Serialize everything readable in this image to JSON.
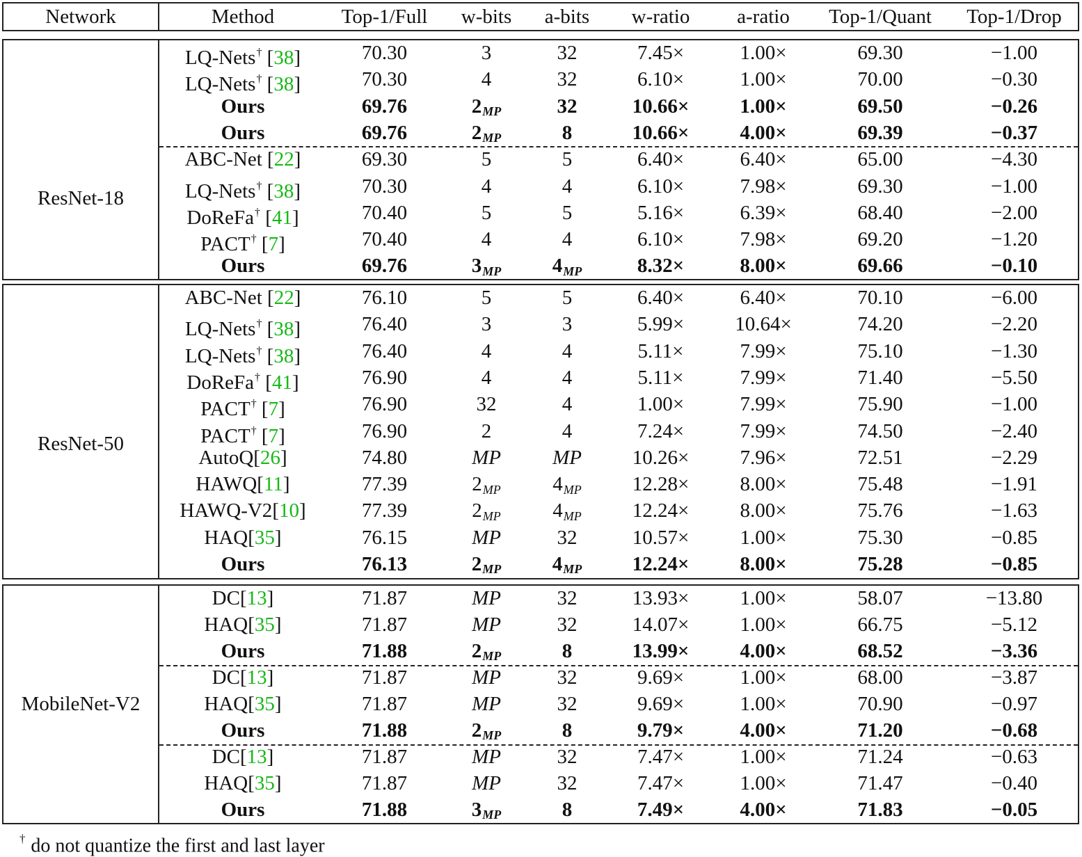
{
  "header": [
    "Network",
    "Method",
    "Top-1/Full",
    "w-bits",
    "a-bits",
    "w-ratio",
    "a-ratio",
    "Top-1/Quant",
    "Top-1/Drop"
  ],
  "groups": [
    {
      "network": "ResNet-18",
      "rows": [
        {
          "name": "LQ-Nets",
          "dag": "†",
          "ref": "38",
          "sep": " ",
          "full": "70.30",
          "w": "3",
          "a": "32",
          "wr": "7.45×",
          "ar": "1.00×",
          "quant": "69.30",
          "drop": "−1.00"
        },
        {
          "name": "LQ-Nets",
          "dag": "†",
          "ref": "38",
          "sep": " ",
          "full": "70.30",
          "w": "4",
          "a": "32",
          "wr": "6.10×",
          "ar": "1.00×",
          "quant": "70.00",
          "drop": "−0.30"
        },
        {
          "name": "Ours",
          "bold": true,
          "full": "69.76",
          "w": "2",
          "w_sub": "MP",
          "a": "32",
          "wr": "10.66×",
          "ar": "1.00×",
          "quant": "69.50",
          "drop": "−0.26"
        },
        {
          "name": "Ours",
          "bold": true,
          "full": "69.76",
          "w": "2",
          "w_sub": "MP",
          "a": "8",
          "wr": "10.66×",
          "ar": "4.00×",
          "quant": "69.39",
          "drop": "−0.37"
        },
        {
          "name": "ABC-Net",
          "ref": "22",
          "sep": " ",
          "full": "69.30",
          "w": "5",
          "a": "5",
          "wr": "6.40×",
          "ar": "6.40×",
          "quant": "65.00",
          "drop": "−4.30"
        },
        {
          "name": "LQ-Nets",
          "dag": "†",
          "ref": "38",
          "sep": " ",
          "full": "70.30",
          "w": "4",
          "a": "4",
          "wr": "6.10×",
          "ar": "7.98×",
          "quant": "69.30",
          "drop": "−1.00"
        },
        {
          "name": "DoReFa",
          "dag": "†",
          "ref": "41",
          "sep": " ",
          "full": "70.40",
          "w": "5",
          "a": "5",
          "wr": "5.16×",
          "ar": "6.39×",
          "quant": "68.40",
          "drop": "−2.00"
        },
        {
          "name": "PACT",
          "dag": "†",
          "ref": "7",
          "sep": " ",
          "full": "70.40",
          "w": "4",
          "a": "4",
          "wr": "6.10×",
          "ar": "7.98×",
          "quant": "69.20",
          "drop": "−1.20"
        },
        {
          "name": "Ours",
          "bold": true,
          "full": "69.76",
          "w": "3",
          "w_sub": "MP",
          "a": "4",
          "a_sub": "MP",
          "wr": "8.32×",
          "ar": "8.00×",
          "quant": "69.66",
          "drop": "−0.10"
        }
      ]
    },
    {
      "network": "ResNet-50",
      "rows": [
        {
          "name": "ABC-Net",
          "ref": "22",
          "sep": " ",
          "full": "76.10",
          "w": "5",
          "a": "5",
          "wr": "6.40×",
          "ar": "6.40×",
          "quant": "70.10",
          "drop": "−6.00"
        },
        {
          "name": "LQ-Nets",
          "dag": "†",
          "ref": "38",
          "sep": " ",
          "full": "76.40",
          "w": "3",
          "a": "3",
          "wr": "5.99×",
          "ar": "10.64×",
          "quant": "74.20",
          "drop": "−2.20"
        },
        {
          "name": "LQ-Nets",
          "dag": "†",
          "ref": "38",
          "sep": " ",
          "full": "76.40",
          "w": "4",
          "a": "4",
          "wr": "5.11×",
          "ar": "7.99×",
          "quant": "75.10",
          "drop": "−1.30"
        },
        {
          "name": "DoReFa",
          "dag": "†",
          "ref": "41",
          "sep": " ",
          "full": "76.90",
          "w": "4",
          "a": "4",
          "wr": "5.11×",
          "ar": "7.99×",
          "quant": "71.40",
          "drop": "−5.50"
        },
        {
          "name": "PACT",
          "dag": "†",
          "ref": "7",
          "sep": " ",
          "full": "76.90",
          "w": "32",
          "a": "4",
          "wr": "1.00×",
          "ar": "7.99×",
          "quant": "75.90",
          "drop": "−1.00"
        },
        {
          "name": "PACT",
          "dag": "†",
          "ref": "7",
          "sep": " ",
          "full": "76.90",
          "w": "2",
          "a": "4",
          "wr": "7.24×",
          "ar": "7.99×",
          "quant": "74.50",
          "drop": "−2.40"
        },
        {
          "name": "AutoQ",
          "ref": "26",
          "full": "74.80",
          "w": "MP",
          "w_it": true,
          "a": "MP",
          "a_it": true,
          "wr": "10.26×",
          "ar": "7.96×",
          "quant": "72.51",
          "drop": "−2.29"
        },
        {
          "name": "HAWQ",
          "ref": "11",
          "full": "77.39",
          "w": "2",
          "w_sub": "MP",
          "a": "4",
          "a_sub": "MP",
          "wr": "12.28×",
          "ar": "8.00×",
          "quant": "75.48",
          "drop": "−1.91"
        },
        {
          "name": "HAWQ-V2",
          "ref": "10",
          "full": "77.39",
          "w": "2",
          "w_sub": "MP",
          "a": "4",
          "a_sub": "MP",
          "wr": "12.24×",
          "ar": "8.00×",
          "quant": "75.76",
          "drop": "−1.63"
        },
        {
          "name": "HAQ",
          "ref": "35",
          "full": "76.15",
          "w": "MP",
          "w_it": true,
          "a": "32",
          "wr": "10.57×",
          "ar": "1.00×",
          "quant": "75.30",
          "drop": "−0.85"
        },
        {
          "name": "Ours",
          "bold": true,
          "full": "76.13",
          "w": "2",
          "w_sub": "MP",
          "a": "4",
          "a_sub": "MP",
          "wr": "12.24×",
          "ar": "8.00×",
          "quant": "75.28",
          "drop": "−0.85"
        }
      ]
    },
    {
      "network": "MobileNet-V2",
      "rows": [
        {
          "name": "DC",
          "ref": "13",
          "full": "71.87",
          "w": "MP",
          "w_it": true,
          "a": "32",
          "wr": "13.93×",
          "ar": "1.00×",
          "quant": "58.07",
          "drop": "−13.80"
        },
        {
          "name": "HAQ",
          "ref": "35",
          "full": "71.87",
          "w": "MP",
          "w_it": true,
          "a": "32",
          "wr": "14.07×",
          "ar": "1.00×",
          "quant": "66.75",
          "drop": "−5.12"
        },
        {
          "name": "Ours",
          "bold": true,
          "full": "71.88",
          "w": "2",
          "w_sub": "MP",
          "a": "8",
          "wr": "13.99×",
          "ar": "4.00×",
          "quant": "68.52",
          "drop": "−3.36"
        },
        {
          "name": "DC",
          "ref": "13",
          "full": "71.87",
          "w": "MP",
          "w_it": true,
          "a": "32",
          "wr": "9.69×",
          "ar": "1.00×",
          "quant": "68.00",
          "drop": "−3.87"
        },
        {
          "name": "HAQ",
          "ref": "35",
          "full": "71.87",
          "w": "MP",
          "w_it": true,
          "a": "32",
          "wr": "9.69×",
          "ar": "1.00×",
          "quant": "70.90",
          "drop": "−0.97"
        },
        {
          "name": "Ours",
          "bold": true,
          "full": "71.88",
          "w": "2",
          "w_sub": "MP",
          "a": "8",
          "wr": "9.79×",
          "ar": "4.00×",
          "quant": "71.20",
          "drop": "−0.68"
        },
        {
          "name": "DC",
          "ref": "13",
          "full": "71.87",
          "w": "MP",
          "w_it": true,
          "a": "32",
          "wr": "7.47×",
          "ar": "1.00×",
          "quant": "71.24",
          "drop": "−0.63"
        },
        {
          "name": "HAQ",
          "ref": "35",
          "full": "71.87",
          "w": "MP",
          "w_it": true,
          "a": "32",
          "wr": "7.47×",
          "ar": "1.00×",
          "quant": "71.47",
          "drop": "−0.40"
        },
        {
          "name": "Ours",
          "bold": true,
          "full": "71.88",
          "w": "3",
          "w_sub": "MP",
          "a": "8",
          "wr": "7.49×",
          "ar": "4.00×",
          "quant": "71.83",
          "drop": "−0.05"
        }
      ]
    }
  ],
  "footnote": {
    "mark": "†",
    "text": "do not quantize the first and last layer"
  },
  "colors": {
    "reference": "#16b816",
    "rule": "#222222"
  }
}
